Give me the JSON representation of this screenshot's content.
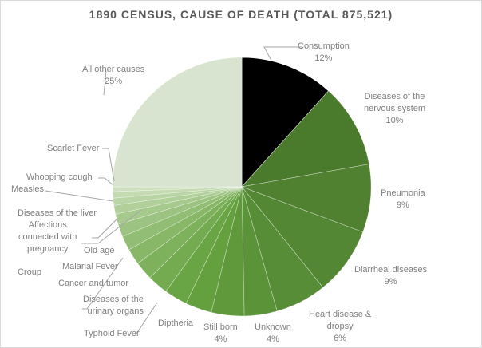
{
  "chart_data": {
    "type": "pie",
    "title": "1890 CENSUS, CAUSE OF DEATH (TOTAL 875,521)",
    "total": 875521,
    "start_angle_deg": 0,
    "direction": "clockwise",
    "categories": [
      "Consumption",
      "Diseases of the nervous system",
      "Pneumonia",
      "Diarrheal diseases",
      "Heart disease & dropsy",
      "Unknown",
      "Still born",
      "Diptheria",
      "Typhoid Fever",
      "Diseases of the urinary organs",
      "Cancer and tumor",
      "Malarial Fever",
      "Old age",
      "Croup",
      "Affections connected with pregnancy",
      "Diseases of the liver",
      "Measles",
      "Whooping cough",
      "Scarlet Fever",
      "All other causes"
    ],
    "values": [
      11.7,
      10.5,
      8.5,
      8.5,
      6.4,
      4.1,
      4.1,
      3.3,
      2.9,
      2.6,
      2.3,
      2.0,
      1.8,
      1.6,
      1.3,
      1.1,
      0.9,
      0.8,
      0.6,
      25.0
    ],
    "data_labels": [
      "12%",
      "10%",
      "9%",
      "9%",
      "6%",
      "4%",
      "4%",
      "",
      "",
      "",
      "",
      "",
      "",
      "",
      "",
      "",
      "",
      "",
      "",
      "25%"
    ],
    "colors": [
      "#000000",
      "#4a7a2b",
      "#4f8130",
      "#538733",
      "#578d36",
      "#5b9338",
      "#5f993b",
      "#64a03e",
      "#6aa545",
      "#74ab50",
      "#7eb15c",
      "#88b768",
      "#92bd74",
      "#9cc381",
      "#a6c98d",
      "#b0cf99",
      "#bad5a5",
      "#c4dbb2",
      "#cedfbf",
      "#d8e4d0"
    ]
  },
  "labels": {
    "consumption": {
      "name": "Consumption",
      "pct": "12%"
    },
    "nervous": {
      "line1": "Diseases of the",
      "line2": "nervous system",
      "pct": "10%"
    },
    "pneumonia": {
      "name": "Pneumonia",
      "pct": "9%"
    },
    "diarrheal": {
      "name": "Diarrheal diseases",
      "pct": "9%"
    },
    "heart": {
      "line1": "Heart disease &",
      "line2": "dropsy",
      "pct": "6%"
    },
    "unknown": {
      "name": "Unknown",
      "pct": "4%"
    },
    "stillborn": {
      "name": "Still born",
      "pct": "4%"
    },
    "diptheria": {
      "name": "Diptheria"
    },
    "typhoid": {
      "name": "Typhoid Fever"
    },
    "urinary": {
      "line1": "Diseases of the",
      "line2": "urinary organs"
    },
    "cancer": {
      "name": "Cancer and tumor"
    },
    "malarial": {
      "name": "Malarial Fever"
    },
    "oldage": {
      "name": "Old age"
    },
    "croup": {
      "name": "Croup"
    },
    "pregnancy": {
      "line1": "Affections",
      "line2": "connected with",
      "line3": "pregnancy"
    },
    "liver": {
      "name": "Diseases of the liver"
    },
    "measles": {
      "name": "Measles"
    },
    "whooping": {
      "name": "Whooping cough"
    },
    "scarlet": {
      "name": "Scarlet Fever"
    },
    "other": {
      "name": "All other causes",
      "pct": "25%"
    }
  }
}
